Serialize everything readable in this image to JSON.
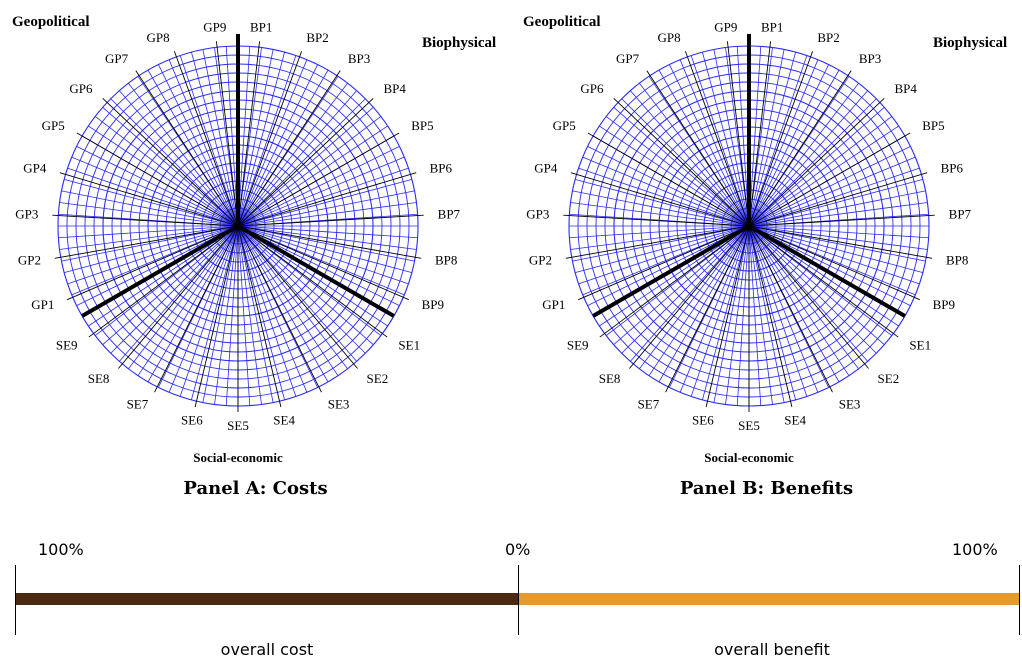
{
  "panels": [
    {
      "title": "Panel A: Costs",
      "group_labels": {
        "geopolitical": "Geopolitical",
        "biophysical": "Biophysical",
        "social": "Social-economic"
      },
      "spokes": [
        "BP1",
        "BP2",
        "BP3",
        "BP4",
        "BP5",
        "BP6",
        "BP7",
        "BP8",
        "BP9",
        "SE1",
        "SE2",
        "SE3",
        "SE4",
        "SE5",
        "SE6",
        "SE7",
        "SE8",
        "SE9",
        "GP1",
        "GP2",
        "GP3",
        "GP4",
        "GP5",
        "GP6",
        "GP7",
        "GP8",
        "GP9"
      ]
    },
    {
      "title": "Panel B: Benefits",
      "group_labels": {
        "geopolitical": "Geopolitical",
        "biophysical": "Biophysical",
        "social": "Social-economic"
      },
      "spokes": [
        "BP1",
        "BP2",
        "BP3",
        "BP4",
        "BP5",
        "BP6",
        "BP7",
        "BP8",
        "BP9",
        "SE1",
        "SE2",
        "SE3",
        "SE4",
        "SE5",
        "SE6",
        "SE7",
        "SE8",
        "SE9",
        "GP1",
        "GP2",
        "GP3",
        "GP4",
        "GP5",
        "GP6",
        "GP7",
        "GP8",
        "GP9"
      ]
    }
  ],
  "colors": {
    "grid": "#2b2bff",
    "cost_bar": "#4a2a10",
    "benefit_bar": "#e69a2e"
  },
  "scale": {
    "left_label": "100%",
    "center_label": "0%",
    "right_label": "100%",
    "cost_caption": "overall cost",
    "benefit_caption": "overall benefit"
  }
}
